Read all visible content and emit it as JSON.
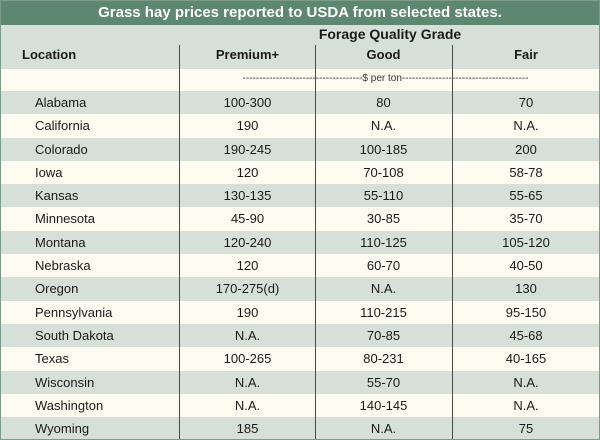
{
  "title": "Grass hay prices reported to USDA from selected states.",
  "header": {
    "group": "Forage Quality Grade",
    "location": "Location",
    "premium": "Premium+",
    "good": "Good",
    "fair": "Fair"
  },
  "unit": "------------------------------------$ per ton--------------------------------------",
  "rows": [
    {
      "location": "Alabama",
      "premium": "100-300",
      "good": "80",
      "fair": "70"
    },
    {
      "location": "California",
      "premium": "190",
      "good": "N.A.",
      "fair": "N.A."
    },
    {
      "location": "Colorado",
      "premium": "190-245",
      "good": "100-185",
      "fair": "200"
    },
    {
      "location": "Iowa",
      "premium": "120",
      "good": "70-108",
      "fair": "58-78"
    },
    {
      "location": "Kansas",
      "premium": "130-135",
      "good": "55-110",
      "fair": "55-65"
    },
    {
      "location": "Minnesota",
      "premium": "45-90",
      "good": "30-85",
      "fair": "35-70"
    },
    {
      "location": "Montana",
      "premium": "120-240",
      "good": "110-125",
      "fair": "105-120"
    },
    {
      "location": "Nebraska",
      "premium": "120",
      "good": "60-70",
      "fair": "40-50"
    },
    {
      "location": "Oregon",
      "premium": "170-275(d)",
      "good": "N.A.",
      "fair": "130"
    },
    {
      "location": "Pennsylvania",
      "premium": "190",
      "good": "110-215",
      "fair": "95-150"
    },
    {
      "location": "South Dakota",
      "premium": "N.A.",
      "good": "70-85",
      "fair": "45-68"
    },
    {
      "location": "Texas",
      "premium": "100-265",
      "good": "80-231",
      "fair": "40-165"
    },
    {
      "location": "Wisconsin",
      "premium": "N.A.",
      "good": "55-70",
      "fair": "N.A."
    },
    {
      "location": "Washington",
      "premium": "N.A.",
      "good": "140-145",
      "fair": "N.A."
    },
    {
      "location": "Wyoming",
      "premium": "185",
      "good": "N.A.",
      "fair": "75"
    }
  ]
}
